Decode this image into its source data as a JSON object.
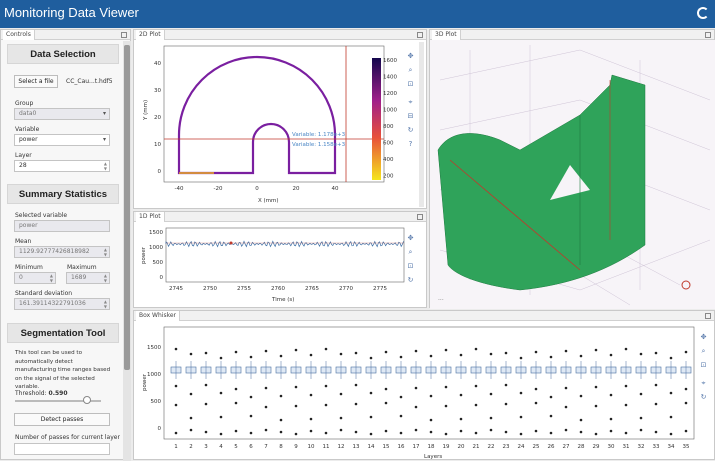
{
  "app": {
    "title": "Monitoring Data Viewer"
  },
  "controls": {
    "tab": "Controls",
    "data_selection": {
      "heading": "Data Selection",
      "select_file_label": "Select a file",
      "file_name": "CC_Cau...t.hdf5",
      "group_label": "Group",
      "group_value": "data0",
      "variable_label": "Variable",
      "variable_value": "power",
      "layer_label": "Layer",
      "layer_value": "28"
    },
    "summary": {
      "heading": "Summary Statistics",
      "selected_variable_label": "Selected variable",
      "selected_variable_value": "power",
      "mean_label": "Mean",
      "mean_value": "1129.92777426818982",
      "min_label": "Minimum",
      "min_value": "0",
      "max_label": "Maximum",
      "max_value": "1689",
      "std_label": "Standard deviation",
      "std_value": "161.39114322791036"
    },
    "segmentation": {
      "heading": "Segmentation Tool",
      "description": "This tool can be used to automatically detect manufacturing time ranges based on the signal of the selected variable.",
      "threshold_label": "Threshold:",
      "threshold_value": "0.590",
      "detect_button": "Detect passes",
      "passes_label": "Number of passes for current layer"
    }
  },
  "plot2d": {
    "tab": "2D Plot",
    "xlabel": "X (mm)",
    "ylabel": "Y (mm)",
    "xticks": [
      "-40",
      "-20",
      "0",
      "20",
      "40"
    ],
    "yticks": [
      "0",
      "10",
      "20",
      "30",
      "40"
    ],
    "colorbar_ticks": [
      "1600",
      "1400",
      "1200",
      "1000",
      "800",
      "600",
      "400",
      "200"
    ],
    "hover_line1": "Variable: 1.178e+3",
    "hover_line2": "Variable: 1.158e+3"
  },
  "plot1d": {
    "tab": "1D Plot",
    "xlabel": "Time (s)",
    "ylabel": "power",
    "xticks": [
      "2745",
      "2750",
      "2755",
      "2760",
      "2765",
      "2770",
      "2775"
    ],
    "yticks": [
      "1500",
      "1000",
      "500",
      "0"
    ]
  },
  "plot3d": {
    "tab": "3D Plot"
  },
  "boxplot": {
    "tab": "Box Whisker",
    "xlabel": "Layers",
    "ylabel": "power",
    "yticks": [
      "1500",
      "1000",
      "500",
      "0"
    ],
    "layers": [
      "1",
      "2",
      "3",
      "4",
      "5",
      "6",
      "7",
      "8",
      "9",
      "10",
      "11",
      "12",
      "13",
      "14",
      "15",
      "16",
      "17",
      "18",
      "19",
      "20",
      "21",
      "22",
      "23",
      "24",
      "25",
      "26",
      "27",
      "28",
      "29",
      "30",
      "31",
      "32",
      "33",
      "34",
      "35"
    ]
  },
  "colors": {
    "titlebar": "#1f5e9e",
    "shape": "#22a85a",
    "signal": "#3b6ea5",
    "path": "#7a1fa0"
  }
}
